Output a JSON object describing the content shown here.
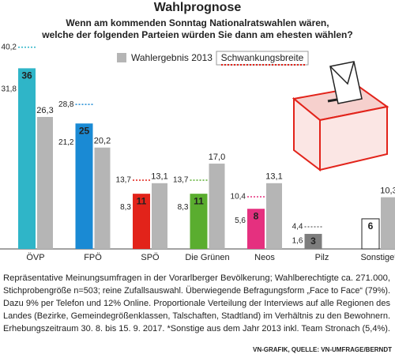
{
  "title": "Wahlprognose",
  "subtitle": [
    "Wenn am kommenden Sonntag Nationalratswahlen wären,",
    "welche der folgenden Parteien würden Sie dann am ehesten wählen?"
  ],
  "chart_data": {
    "type": "bar",
    "categories": [
      "ÖVP",
      "FPÖ",
      "SPÖ",
      "Die Grünen",
      "Neos",
      "Pilz",
      "Sonstige*"
    ],
    "values": [
      36,
      25,
      11,
      11,
      8,
      3,
      6
    ],
    "colors": [
      "#2fb5c8",
      "#1a8ad4",
      "#e2231a",
      "#5aad2f",
      "#e5307f",
      "#7d7d7d",
      "#ffffff"
    ],
    "previous": {
      "name": "Wahlergebnis 2013",
      "color": "#b5b5b5",
      "values": [
        26.3,
        20.2,
        13.1,
        17.0,
        13.1,
        null,
        10.3
      ],
      "value_labels": [
        "26,3",
        "20,2",
        "13,1",
        "17,0",
        "13,1",
        null,
        "10,3"
      ]
    },
    "range": {
      "name": "Schwankungsbreite",
      "legend_color": "#e2231a",
      "low": [
        31.8,
        21.2,
        8.3,
        8.3,
        5.6,
        1.6,
        null
      ],
      "low_labels": [
        "31,8",
        "21,2",
        "8,3",
        "8,3",
        "5,6",
        "1,6",
        null
      ],
      "high": [
        40.2,
        28.8,
        13.7,
        13.7,
        10.4,
        4.4,
        null
      ],
      "high_labels": [
        "40,2",
        "28,8",
        "13,7",
        "13,7",
        "10,4",
        "4,4",
        null
      ]
    }
  },
  "footnote": [
    "Repräsentative Meinungsumfragen in der Vorarlberger Bevölkerung; Wahlberechtigte ca. 271.000,",
    "Stichprobengröße n=503; reine Zufallsauswahl. Überwiegende Befragungsform „Face to Face“ (79%).",
    "Dazu 9% per Telefon und 12% Online. Proportionale Verteilung der Interviews auf alle Regionen des",
    "Landes (Bezirke, Gemeindegrößenklassen, Talschaften, Stadtland) im Verhältnis zu den Bewohnern.",
    "Erhebungszeitraum 30. 8. bis 15. 9. 2017. *Sonstige aus dem Jahr 2013 inkl. Team Stronach (5,4%)."
  ],
  "source": "VN-GRAFIK, QUELLE: VN-UMFRAGE/BERNDT"
}
